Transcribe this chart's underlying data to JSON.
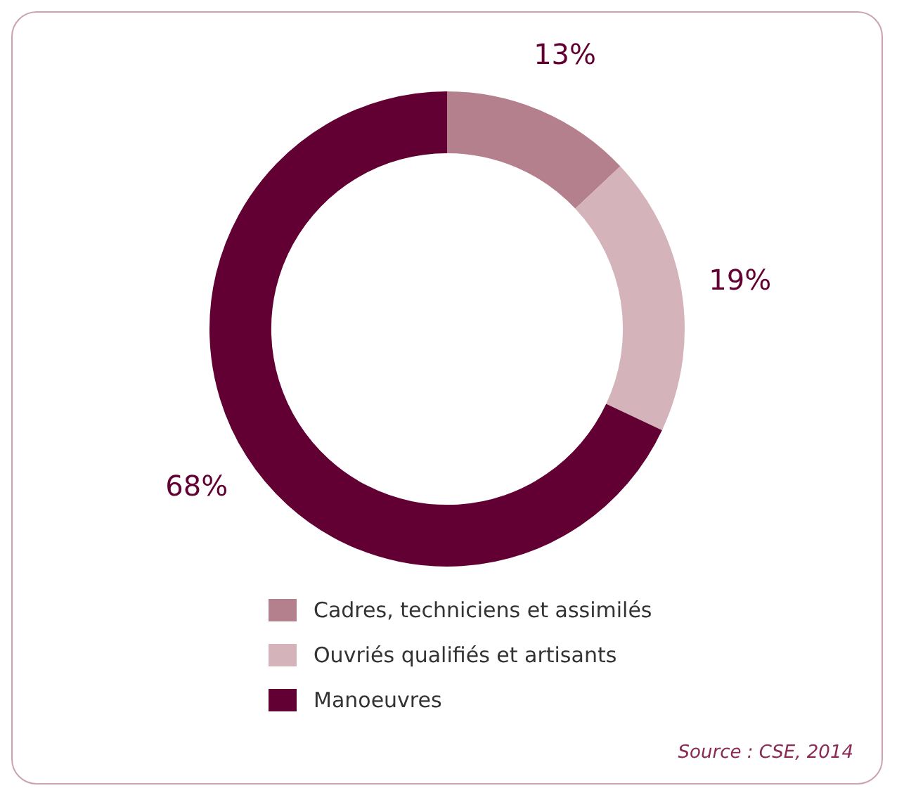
{
  "chart_data": {
    "type": "donut",
    "categories": [
      "Cadres, techniciens et assimilés",
      "Ouvriés qualifiés et artisants",
      "Manoeuvres"
    ],
    "values": [
      13,
      19,
      68
    ],
    "colors": [
      "#b5808e",
      "#d4b3ba",
      "#630033"
    ],
    "value_labels": [
      "13%",
      "19%",
      "68%"
    ],
    "legend": "bottom",
    "annotations": [
      "Source : CSE, 2014"
    ]
  }
}
